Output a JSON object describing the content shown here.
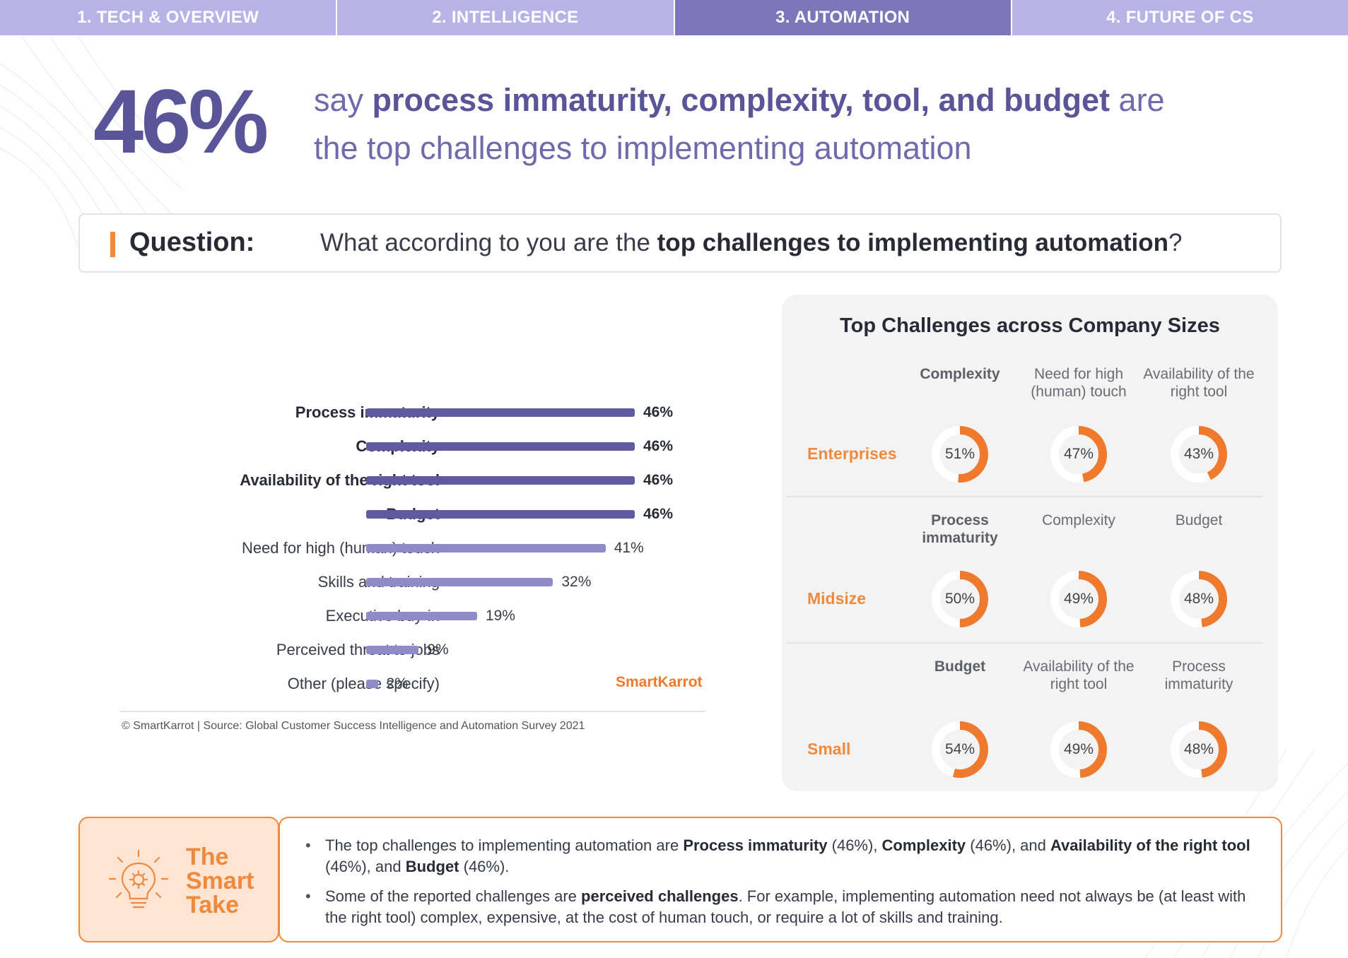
{
  "tabs": [
    {
      "label": "1. TECH & OVERVIEW"
    },
    {
      "label": "2. INTELLIGENCE"
    },
    {
      "label": "3. AUTOMATION"
    },
    {
      "label": "4. FUTURE OF CS"
    }
  ],
  "active_tab": 2,
  "headline": {
    "stat": "46%",
    "line_pre": "say ",
    "line_bold": "process immaturity, complexity, tool, and budget",
    "line_post": " are",
    "line2": "the top challenges to implementing automation"
  },
  "question": {
    "label": "Question:",
    "text_pre": "What according to you are the ",
    "text_bold": "top challenges to implementing automation",
    "text_post": "?"
  },
  "chart_data": [
    {
      "type": "bar",
      "orientation": "horizontal",
      "categories": [
        "Process immaturity",
        "Complexity",
        "Availability of the right tool",
        "Budget",
        "Need for high (human) touch",
        "Skills and training",
        "Executive buy-in",
        "Perceived threat to jobs",
        "Other (please specify)"
      ],
      "values": [
        46,
        46,
        46,
        46,
        41,
        32,
        19,
        9,
        2
      ],
      "value_labels": [
        "46%",
        "46%",
        "46%",
        "46%",
        "41%",
        "32%",
        "19%",
        "9%",
        "2%"
      ],
      "highlighted": [
        true,
        true,
        true,
        true,
        false,
        false,
        false,
        false,
        false
      ],
      "colors": {
        "highlight": "#5f5aa2",
        "normal": "#8f8bc9"
      },
      "xlim": [
        0,
        46
      ]
    },
    {
      "type": "donut-grid",
      "title": "Top Challenges across Company Sizes",
      "rows": [
        {
          "size": "Enterprises",
          "cells": [
            {
              "label": "Complexity",
              "value": 51,
              "bold": true
            },
            {
              "label": "Need for high (human) touch",
              "value": 47,
              "bold": false
            },
            {
              "label": "Availability of the right tool",
              "value": 43,
              "bold": false
            }
          ]
        },
        {
          "size": "Midsize",
          "cells": [
            {
              "label": "Process immaturity",
              "value": 50,
              "bold": true
            },
            {
              "label": "Complexity",
              "value": 49,
              "bold": false
            },
            {
              "label": "Budget",
              "value": 48,
              "bold": false
            }
          ]
        },
        {
          "size": "Small",
          "cells": [
            {
              "label": "Budget",
              "value": 54,
              "bold": true
            },
            {
              "label": "Availability of the right tool",
              "value": 49,
              "bold": false
            },
            {
              "label": "Process immaturity",
              "value": 48,
              "bold": false
            }
          ]
        }
      ],
      "colors": {
        "fill": "#ef7a2d",
        "track": "#ffffff"
      }
    }
  ],
  "brand": "SmartKarrot",
  "source": "© SmartKarrot | Source: Global Customer Success Intelligence and Automation Survey 2021",
  "smart_take": {
    "title_lines": [
      "The",
      "Smart",
      "Take"
    ],
    "icon": "lightbulb-gear-icon",
    "bullets": [
      {
        "segments": [
          {
            "t": "The top challenges to implementing automation are ",
            "b": false
          },
          {
            "t": "Process immaturity",
            "b": true
          },
          {
            "t": " (46%), ",
            "b": false
          },
          {
            "t": "Complexity",
            "b": true
          },
          {
            "t": " (46%), and ",
            "b": false
          },
          {
            "t": "Availability of the right tool",
            "b": true
          },
          {
            "t": " (46%), and ",
            "b": false
          },
          {
            "t": "Budget",
            "b": true
          },
          {
            "t": " (46%).",
            "b": false
          }
        ]
      },
      {
        "segments": [
          {
            "t": "Some of the reported challenges are ",
            "b": false
          },
          {
            "t": "perceived challenges",
            "b": true
          },
          {
            "t": ". For example, implementing automation need not always be (at least with the right tool) complex, expensive, at the cost of human touch, or require a lot of skills and training.",
            "b": false
          }
        ]
      }
    ]
  },
  "theme": {
    "accent_orange": "#ef8a3d",
    "accent_purple": "#5a5599",
    "tab_bg": "#b7b3e6",
    "tab_active_bg": "#7b77b9"
  }
}
